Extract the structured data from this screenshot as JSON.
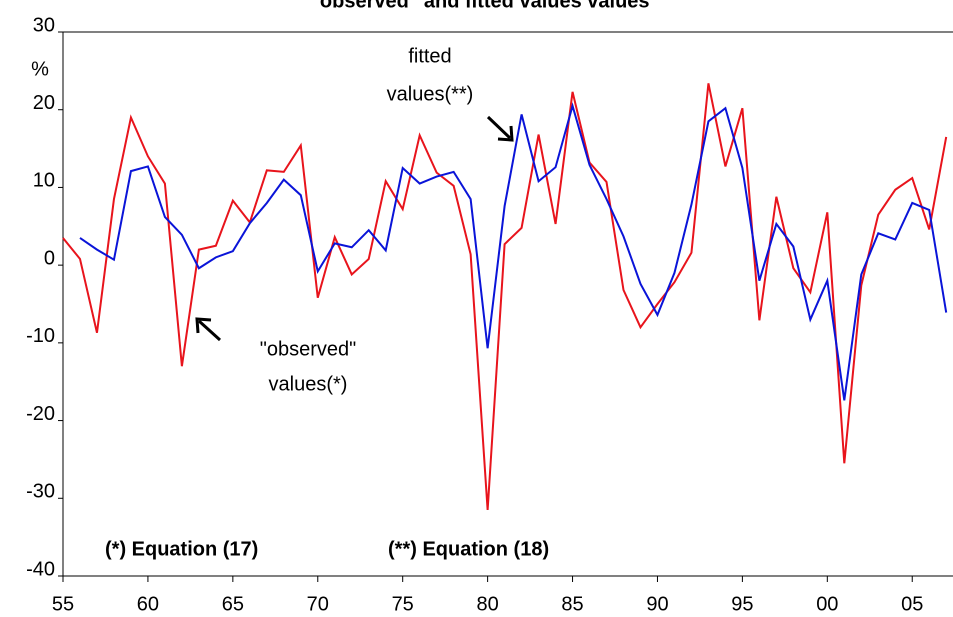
{
  "chart_data": {
    "type": "line",
    "title": "\"observed\" and fitted values values",
    "ylabel": "%",
    "x": [
      1955,
      1956,
      1957,
      1958,
      1959,
      1960,
      1961,
      1962,
      1963,
      1964,
      1965,
      1966,
      1967,
      1968,
      1969,
      1970,
      1971,
      1972,
      1973,
      1974,
      1975,
      1976,
      1977,
      1978,
      1979,
      1980,
      1981,
      1982,
      1983,
      1984,
      1985,
      1986,
      1987,
      1988,
      1989,
      1990,
      1991,
      1992,
      1993,
      1994,
      1995,
      1996,
      1997,
      1998,
      1999,
      2000,
      2001,
      2002,
      2003,
      2004,
      2005,
      2006,
      2007
    ],
    "series": [
      {
        "name": "observed",
        "color": "#e8141c",
        "values": [
          3.5,
          0.8,
          -8.7,
          8.5,
          19,
          14,
          10.5,
          -13,
          2,
          2.5,
          8.3,
          5.5,
          12.2,
          12,
          15.4,
          -4.2,
          3.6,
          -1.2,
          0.8,
          10.8,
          7.2,
          16.7,
          11.9,
          10.2,
          1.4,
          -31.5,
          2.7,
          4.8,
          16.8,
          5.3,
          22.3,
          13.2,
          10.7,
          -3.2,
          -8,
          -5,
          -2.2,
          1.6,
          23.4,
          12.7,
          20.2,
          -7.1,
          8.8,
          -0.4,
          -3.5,
          6.8,
          -25.5,
          -2.6,
          6.5,
          9.7,
          11.2,
          4.6,
          16.5
        ]
      },
      {
        "name": "fitted",
        "color": "#0a14d8",
        "values": [
          null,
          3.5,
          2,
          0.7,
          12.1,
          12.7,
          6.2,
          3.9,
          -0.4,
          1,
          1.8,
          5.4,
          8,
          11,
          9,
          -0.8,
          2.8,
          2.3,
          4.5,
          1.9,
          12.5,
          10.5,
          11.4,
          12,
          8.5,
          -10.7,
          7.6,
          19.4,
          10.8,
          12.6,
          20.5,
          12.9,
          8.5,
          3.7,
          -2.4,
          -6.4,
          -1,
          7.8,
          18.5,
          20.2,
          12.5,
          -2,
          5.3,
          2.4,
          -7,
          -2,
          -17.4,
          -1.2,
          4.1,
          3.3,
          8,
          7.1,
          -6.1
        ]
      }
    ],
    "xlim": [
      1955,
      2007.4
    ],
    "xticks": [
      {
        "value": 1955,
        "label": "55"
      },
      {
        "value": 1960,
        "label": "60"
      },
      {
        "value": 1965,
        "label": "65"
      },
      {
        "value": 1970,
        "label": "70"
      },
      {
        "value": 1975,
        "label": "75"
      },
      {
        "value": 1980,
        "label": "80"
      },
      {
        "value": 1985,
        "label": "85"
      },
      {
        "value": 1990,
        "label": "90"
      },
      {
        "value": 1995,
        "label": "95"
      },
      {
        "value": 2000,
        "label": "00"
      },
      {
        "value": 2005,
        "label": "05"
      }
    ],
    "ylim": [
      -40,
      30
    ],
    "yticks": [
      30,
      20,
      10,
      0,
      -10,
      -20,
      -30,
      -40
    ],
    "annotations": [
      {
        "lines": [
          "fitted",
          "values(**)"
        ]
      },
      {
        "lines": [
          "\"observed\"",
          "values(*)"
        ]
      },
      {
        "lines": [
          "(*)  Equation (17)"
        ]
      },
      {
        "lines": [
          "(**) Equation (18)"
        ]
      }
    ]
  }
}
